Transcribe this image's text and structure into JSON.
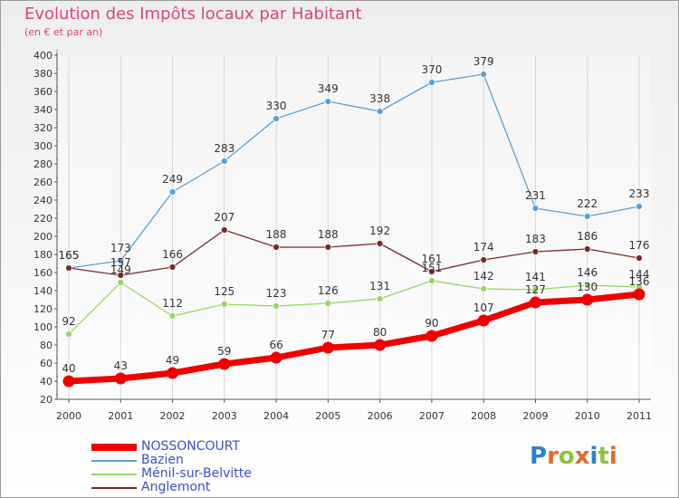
{
  "title": "Evolution des Impôts locaux par Habitant",
  "subtitle": "(en € et par an)",
  "brand": {
    "letters": [
      {
        "ch": "P",
        "color": "#2f7fd0"
      },
      {
        "ch": "r",
        "color": "#e36a2b"
      },
      {
        "ch": "o",
        "color": "#8ec23f"
      },
      {
        "ch": "x",
        "color": "#e36a2b"
      },
      {
        "ch": "i",
        "color": "#2f7fd0"
      },
      {
        "ch": "t",
        "color": "#8ec23f"
      },
      {
        "ch": "i",
        "color": "#e36a2b"
      }
    ]
  },
  "chart_data": {
    "type": "line",
    "title": "Evolution des Impôts locaux par Habitant",
    "subtitle": "(en € et par an)",
    "x": [
      "2000",
      "2001",
      "2002",
      "2003",
      "2004",
      "2005",
      "2006",
      "2007",
      "2008",
      "2009",
      "2010",
      "2011"
    ],
    "ylim": [
      20,
      400
    ],
    "yticks": [
      20,
      40,
      60,
      80,
      100,
      120,
      140,
      160,
      180,
      200,
      220,
      240,
      260,
      280,
      300,
      320,
      340,
      360,
      380,
      400
    ],
    "grid": "vertical",
    "legend_position": "bottom-left",
    "series": [
      {
        "name": "NOSSONCOURT",
        "color": "#ee0000",
        "bold": true,
        "values": [
          40,
          43,
          49,
          59,
          66,
          77,
          80,
          90,
          107,
          127,
          130,
          136
        ]
      },
      {
        "name": "Bazien",
        "color": "#5b9fd6",
        "values": [
          165,
          173,
          249,
          283,
          330,
          349,
          338,
          370,
          379,
          231,
          222,
          233
        ]
      },
      {
        "name": "Ménil-sur-Belvitte",
        "color": "#99d462",
        "values": [
          92,
          149,
          112,
          125,
          123,
          126,
          131,
          151,
          142,
          141,
          146,
          144
        ]
      },
      {
        "name": "Anglemont",
        "color": "#7a2a2a",
        "values": [
          165,
          157,
          166,
          207,
          188,
          188,
          192,
          161,
          174,
          183,
          186,
          176
        ]
      }
    ],
    "point_labels": [
      {
        "series": 0,
        "labels": [
          "40",
          "43",
          "49",
          "59",
          "66",
          "77",
          "80",
          "90",
          "107",
          "127",
          "130",
          "136"
        ]
      },
      {
        "series": 1,
        "labels": [
          "165",
          "173",
          "249",
          "283",
          "330",
          "349",
          "338",
          "370",
          "379",
          "231",
          "222",
          "233"
        ]
      },
      {
        "series": 2,
        "labels": [
          "92",
          "149",
          "112",
          "125",
          "123",
          "126",
          "131",
          "151",
          "142",
          "141",
          "146",
          "144"
        ]
      },
      {
        "series": 3,
        "labels": [
          "165",
          "157",
          "166",
          "207",
          "188",
          "188",
          "192",
          "161",
          "174",
          "183",
          "186",
          "176"
        ]
      }
    ]
  }
}
